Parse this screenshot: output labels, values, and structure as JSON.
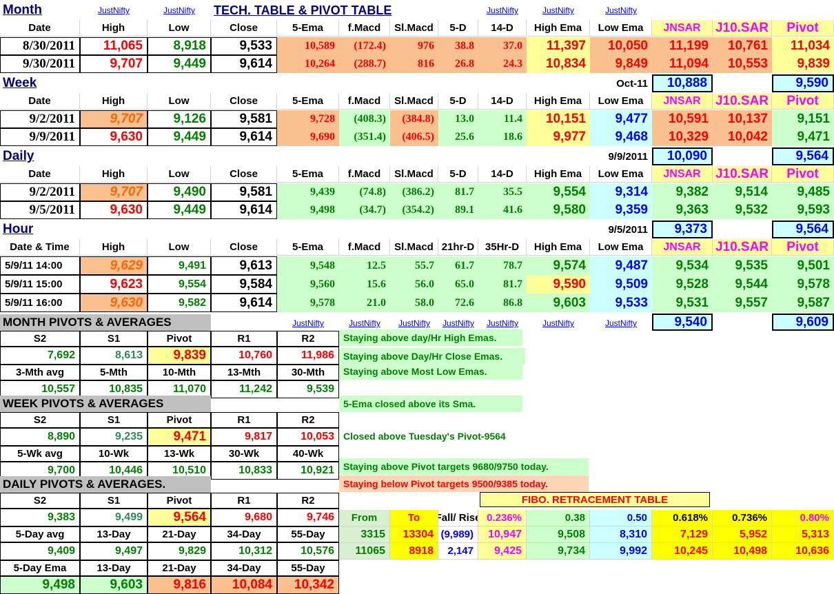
{
  "title": "TECH. TABLE  &  PIVOT TABLE",
  "link": "JustNifty",
  "sections": {
    "month": "Month",
    "week": "Week",
    "daily": "Daily",
    "hour": "Hour"
  },
  "headers": {
    "date": "Date",
    "datetime": "Date & Time",
    "high": "High",
    "low": "Low",
    "close": "Close",
    "ema5": "5-Ema",
    "fmacd": "f.Macd",
    "slmacd": "Sl.Macd",
    "d5": "5-D",
    "d14": "14-D",
    "hr21": "21hr-D",
    "hr35": "35Hr-D",
    "highema": "High Ema",
    "lowema": "Low Ema",
    "jnsar": "JNSAR",
    "j10sar": "J10.SAR",
    "pivot": "Pivot"
  },
  "month": {
    "rows": [
      [
        "8/30/2011",
        "11,065",
        "8,918",
        "9,533",
        "10,589",
        "(172.4)",
        "976",
        "38.8",
        "37.0",
        "11,397",
        "10,050",
        "11,199",
        "10,761",
        "11,034"
      ],
      [
        "9/30/2011",
        "9,707",
        "9,449",
        "9,614",
        "10,264",
        "(288.7)",
        "816",
        "26.8",
        "24.3",
        "10,834",
        "9,849",
        "11,094",
        "10,553",
        "9,839"
      ]
    ],
    "footer": {
      "label": "Oct-11",
      "jnsar": "10,888",
      "pivot": "9,590"
    }
  },
  "week": {
    "rows": [
      [
        "9/2/2011",
        "9,707",
        "9,126",
        "9,581",
        "9,728",
        "(408.3)",
        "(384.8)",
        "13.0",
        "11.4",
        "10,151",
        "9,477",
        "10,591",
        "10,137",
        "9,151"
      ],
      [
        "9/9/2011",
        "9,630",
        "9,449",
        "9,614",
        "9,690",
        "(351.4)",
        "(406.5)",
        "25.6",
        "18.6",
        "9,977",
        "9,468",
        "10,329",
        "10,042",
        "9,471"
      ]
    ],
    "footer": {
      "label": "9/9/2011",
      "jnsar": "10,090",
      "pivot": "9,564"
    }
  },
  "daily": {
    "rows": [
      [
        "9/2/2011",
        "9,707",
        "9,490",
        "9,581",
        "9,439",
        "(74.8)",
        "(386.2)",
        "81.7",
        "35.5",
        "9,554",
        "9,314",
        "9,382",
        "9,514",
        "9,485"
      ],
      [
        "9/5/2011",
        "9,630",
        "9,449",
        "9,614",
        "9,498",
        "(34.7)",
        "(354.2)",
        "89.1",
        "41.6",
        "9,580",
        "9,359",
        "9,363",
        "9,532",
        "9,593"
      ]
    ],
    "footer": {
      "label": "9/5/2011",
      "jnsar": "9,373",
      "pivot": "9,564"
    }
  },
  "hour": {
    "rows": [
      [
        "5/9/11 14:00",
        "9,629",
        "9,491",
        "9,613",
        "9,548",
        "12.5",
        "55.7",
        "61.7",
        "78.7",
        "9,574",
        "9,487",
        "9,534",
        "9,535",
        "9,501"
      ],
      [
        "5/9/11 15:00",
        "9,623",
        "9,554",
        "9,584",
        "9,560",
        "15.6",
        "56.0",
        "65.0",
        "81.7",
        "9,590",
        "9,509",
        "9,528",
        "9,544",
        "9,578"
      ],
      [
        "5/9/11 16:00",
        "9,630",
        "9,582",
        "9,614",
        "9,578",
        "21.0",
        "58.0",
        "72.6",
        "86.8",
        "9,603",
        "9,533",
        "9,531",
        "9,557",
        "9,587"
      ]
    ],
    "footer": {
      "jnsar": "9,540",
      "pivot": "9,609"
    }
  },
  "pivots": {
    "month": {
      "title": "MONTH  PIVOTS  &  AVERAGES",
      "h1": [
        "S2",
        "S1",
        "Pivot",
        "R1",
        "R2"
      ],
      "v1": [
        "7,692",
        "8,613",
        "9,839",
        "10,760",
        "11,986"
      ],
      "h2": [
        "3-Mth avg",
        "5-Mth",
        "10-Mth",
        "13-Mth",
        "30-Mth"
      ],
      "v2": [
        "10,557",
        "10,835",
        "11,070",
        "11,242",
        "9,539"
      ]
    },
    "week": {
      "title": "WEEK  PIVOTS  &  AVERAGES",
      "h1": [
        "S2",
        "S1",
        "Pivot",
        "R1",
        "R2"
      ],
      "v1": [
        "8,890",
        "9,235",
        "9,471",
        "9,817",
        "10,053"
      ],
      "h2": [
        "5-Wk avg",
        "10-Wk",
        "13-Wk",
        "30-Wk",
        "40-Wk"
      ],
      "v2": [
        "9,700",
        "10,446",
        "10,510",
        "10,833",
        "10,921"
      ]
    },
    "daily": {
      "title": "DAILY  PIVOTS  &  AVERAGES.",
      "h1": [
        "S2",
        "S1",
        "Pivot",
        "R1",
        "R2"
      ],
      "v1": [
        "9,383",
        "9,499",
        "9,564",
        "9,680",
        "9,746"
      ],
      "h2": [
        "5-Day avg",
        "13-Day",
        "21-Day",
        "34-Day",
        "55-Day"
      ],
      "v2": [
        "9,409",
        "9,497",
        "9,829",
        "10,312",
        "10,576"
      ],
      "h3": [
        "5-Day Ema",
        "13-Day",
        "21-Day",
        "34-Day",
        "55-Day"
      ],
      "v3": [
        "9,498",
        "9,603",
        "9,816",
        "10,084",
        "10,342"
      ]
    }
  },
  "messages": [
    "Staying above day/Hr High Emas.",
    "Staying above Day/Hr Close Emas.",
    "Staying above Most Low Emas.",
    "5-Ema closed above its Sma.",
    "Closed above Tuesday's Pivot-9564",
    "Staying above Pivot targets 9680/9750 today.",
    "Staying below Pivot targets 9500/9385 today."
  ],
  "fibo": {
    "title": "FIBO. RETRACEMENT TABLE",
    "headers": [
      "From",
      "To",
      "Fall/ Rise",
      "0.236%",
      "0.38",
      "0.50",
      "0.618%",
      "0.736%",
      "0.80%"
    ],
    "rows": [
      [
        "3315",
        "13304",
        "(9,989)",
        "10,947",
        "9,508",
        "8,310",
        "7,129",
        "5,952",
        "5,313"
      ],
      [
        "11065",
        "8918",
        "2,147",
        "9,425",
        "9,734",
        "9,992",
        "10,245",
        "10,498",
        "10,636"
      ]
    ]
  },
  "colors": {
    "orange": "#fac090",
    "green": "#ccffcc",
    "yellow": "#ffff99",
    "cyan": "#ccffff",
    "bright_yellow": "#ffff00",
    "grey": "#c0c0c0"
  }
}
